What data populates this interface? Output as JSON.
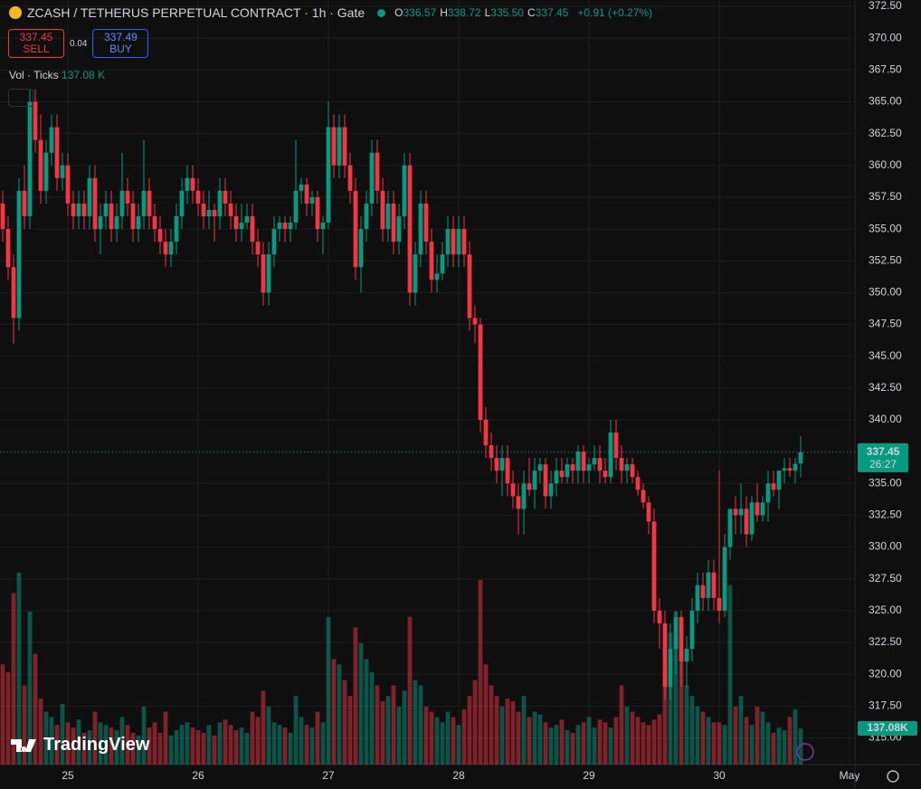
{
  "header": {
    "symbol": "ZCASH / TETHERUS PERPETUAL CONTRACT · 1h · Gate",
    "ohlc": [
      {
        "label": "O",
        "value": "336.57"
      },
      {
        "label": "H",
        "value": "338.72"
      },
      {
        "label": "L",
        "value": "335.50"
      },
      {
        "label": "C",
        "value": "337.45"
      }
    ],
    "change": "+0.91 (+0.27%)"
  },
  "trade": {
    "sell_price": "337.45",
    "sell_label": "SELL",
    "spread": "0.04",
    "buy_price": "337.49",
    "buy_label": "BUY"
  },
  "volume_legend": {
    "label": "Vol · Ticks",
    "value": "137.08 K"
  },
  "logo": "TradingView",
  "chart_data": {
    "type": "candlestick",
    "colors": {
      "up": "#089981",
      "down": "#f23645"
    },
    "candles": [
      [
        357,
        358,
        354,
        355
      ],
      [
        355,
        356,
        351,
        352
      ],
      [
        352,
        353,
        346,
        348
      ],
      [
        348,
        359,
        347,
        358
      ],
      [
        358,
        360,
        355,
        356
      ],
      [
        356,
        366,
        355,
        365
      ],
      [
        365,
        366,
        361,
        362
      ],
      [
        362,
        364,
        357,
        358
      ],
      [
        358,
        362,
        357,
        361
      ],
      [
        361,
        364,
        360,
        363
      ],
      [
        363,
        364,
        358,
        359
      ],
      [
        359,
        361,
        358,
        360
      ],
      [
        360,
        361,
        356,
        357
      ],
      [
        357,
        358,
        355,
        356
      ],
      [
        356,
        358,
        355,
        357
      ],
      [
        357,
        358,
        355,
        356
      ],
      [
        356,
        360,
        355,
        359
      ],
      [
        359,
        360,
        354,
        355
      ],
      [
        355,
        357,
        353,
        356
      ],
      [
        356,
        358,
        355,
        357
      ],
      [
        357,
        358,
        354,
        355
      ],
      [
        355,
        357,
        354,
        356
      ],
      [
        356,
        361,
        355,
        358
      ],
      [
        358,
        359,
        356,
        357
      ],
      [
        357,
        358,
        354,
        355
      ],
      [
        355,
        357,
        354,
        356
      ],
      [
        356,
        362,
        355,
        358
      ],
      [
        358,
        359,
        355,
        356
      ],
      [
        356,
        357,
        354,
        355
      ],
      [
        355,
        356,
        353,
        354
      ],
      [
        354,
        355,
        352,
        353
      ],
      [
        353,
        355,
        352,
        354
      ],
      [
        354,
        357,
        353,
        356
      ],
      [
        356,
        359,
        355,
        358
      ],
      [
        358,
        360,
        357,
        359
      ],
      [
        359,
        360,
        357,
        358
      ],
      [
        358,
        359,
        356,
        357
      ],
      [
        357,
        358,
        355,
        356
      ],
      [
        356,
        358,
        355,
        356.5
      ],
      [
        356.5,
        357,
        354,
        356
      ],
      [
        356,
        359,
        355,
        358
      ],
      [
        358,
        359,
        356,
        357
      ],
      [
        357,
        358,
        355,
        356
      ],
      [
        356,
        357,
        354,
        355
      ],
      [
        355,
        357,
        354,
        355.5
      ],
      [
        355.5,
        357,
        355,
        356
      ],
      [
        356,
        357,
        353,
        354
      ],
      [
        354,
        355,
        352,
        353
      ],
      [
        353,
        354,
        349,
        350
      ],
      [
        350,
        354,
        349,
        353
      ],
      [
        353,
        356,
        352,
        355
      ],
      [
        355,
        356,
        354,
        355.5
      ],
      [
        355.5,
        356,
        354,
        355
      ],
      [
        355,
        356,
        354,
        355.5
      ],
      [
        355.5,
        362,
        355,
        358
      ],
      [
        358,
        359,
        357,
        358.5
      ],
      [
        358.5,
        359,
        356,
        357
      ],
      [
        357,
        358,
        356,
        357.5
      ],
      [
        357.5,
        358,
        354,
        355
      ],
      [
        355,
        356,
        353,
        355.5
      ],
      [
        355.5,
        365,
        355,
        363
      ],
      [
        363,
        364,
        359,
        360
      ],
      [
        360,
        364,
        359,
        363
      ],
      [
        363,
        364,
        359,
        360
      ],
      [
        360,
        361,
        357,
        358
      ],
      [
        358,
        359,
        351,
        352
      ],
      [
        352,
        356,
        350,
        355
      ],
      [
        355,
        358,
        354,
        357
      ],
      [
        357,
        362,
        356,
        361
      ],
      [
        361,
        362,
        357,
        358
      ],
      [
        358,
        359,
        354,
        355
      ],
      [
        355,
        358,
        354,
        357
      ],
      [
        357,
        358,
        353,
        354
      ],
      [
        354,
        357,
        353,
        356
      ],
      [
        356,
        361,
        355,
        360
      ],
      [
        360,
        361,
        349,
        350
      ],
      [
        350,
        354,
        349,
        353
      ],
      [
        353,
        358,
        352,
        357
      ],
      [
        357,
        358,
        353,
        354
      ],
      [
        354,
        355,
        350,
        351
      ],
      [
        351,
        353,
        350,
        351.5
      ],
      [
        351.5,
        354,
        351,
        353
      ],
      [
        353,
        356,
        352,
        355
      ],
      [
        355,
        356,
        352,
        353
      ],
      [
        353,
        356,
        352,
        355
      ],
      [
        355,
        356,
        352,
        353
      ],
      [
        353,
        354,
        347,
        348
      ],
      [
        348,
        349,
        346,
        347.5
      ],
      [
        347.5,
        348,
        339,
        340
      ],
      [
        340,
        341,
        337,
        338
      ],
      [
        338,
        339,
        336,
        337
      ],
      [
        337,
        338,
        335,
        336
      ],
      [
        336,
        338,
        334,
        337
      ],
      [
        337,
        338,
        334,
        335
      ],
      [
        335,
        336,
        333,
        334
      ],
      [
        334,
        335,
        331,
        333
      ],
      [
        333,
        336,
        331,
        335
      ],
      [
        335,
        337,
        334,
        334.5
      ],
      [
        334.5,
        337,
        333,
        336
      ],
      [
        336,
        337,
        335,
        336.5
      ],
      [
        336.5,
        337,
        333,
        334
      ],
      [
        334,
        336,
        333,
        335
      ],
      [
        335,
        337,
        334,
        336
      ],
      [
        336,
        337,
        335,
        335.5
      ],
      [
        335.5,
        337,
        335,
        336.5
      ],
      [
        336.5,
        337,
        335,
        336
      ],
      [
        336,
        338,
        335,
        337.5
      ],
      [
        337.5,
        338,
        335,
        336
      ],
      [
        336,
        337,
        335,
        336.5
      ],
      [
        336.5,
        338,
        336,
        337
      ],
      [
        337,
        338,
        335,
        336
      ],
      [
        336,
        337,
        335,
        335.5
      ],
      [
        335.5,
        340,
        335,
        339
      ],
      [
        339,
        340,
        336,
        337
      ],
      [
        337,
        338,
        335,
        336
      ],
      [
        336,
        337,
        335,
        336.5
      ],
      [
        336.5,
        337,
        335,
        335.5
      ],
      [
        335.5,
        336,
        334,
        334.5
      ],
      [
        334.5,
        335,
        333,
        333.5
      ],
      [
        333.5,
        334,
        331,
        332
      ],
      [
        332,
        333,
        324,
        325
      ],
      [
        325,
        326,
        322,
        324
      ],
      [
        324,
        325,
        318,
        319
      ],
      [
        319,
        324,
        318,
        322
      ],
      [
        322,
        325,
        320,
        324.5
      ],
      [
        324.5,
        325,
        319,
        321
      ],
      [
        321,
        323,
        319,
        322
      ],
      [
        322,
        326,
        321,
        325
      ],
      [
        325,
        328,
        324,
        327
      ],
      [
        327,
        328,
        325,
        326
      ],
      [
        326,
        329,
        325,
        328
      ],
      [
        328,
        329,
        325,
        326
      ],
      [
        326,
        336,
        324,
        325
      ],
      [
        325,
        331,
        324.5,
        330
      ],
      [
        330,
        333,
        329,
        333
      ],
      [
        333,
        334,
        331,
        332.5
      ],
      [
        332.5,
        335,
        331,
        333
      ],
      [
        333,
        334,
        330,
        331
      ],
      [
        331,
        334,
        330.5,
        333.5
      ],
      [
        333.5,
        335,
        332,
        332.5
      ],
      [
        332.5,
        334,
        332,
        333.5
      ],
      [
        333.5,
        336,
        332,
        335
      ],
      [
        335,
        336,
        334,
        334.5
      ],
      [
        334.5,
        336,
        333,
        336
      ],
      [
        336,
        337,
        335,
        336.2
      ],
      [
        336.2,
        337,
        335.5,
        336
      ],
      [
        336,
        337,
        335,
        336.54
      ],
      [
        336.57,
        338.72,
        335.5,
        337.45
      ]
    ],
    "volumes": [
      380,
      350,
      650,
      727,
      300,
      580,
      420,
      250,
      200,
      180,
      150,
      230,
      160,
      140,
      170,
      120,
      130,
      200,
      160,
      150,
      140,
      130,
      180,
      150,
      120,
      110,
      220,
      140,
      160,
      120,
      200,
      110,
      130,
      150,
      160,
      140,
      130,
      120,
      150,
      110,
      160,
      170,
      150,
      130,
      140,
      120,
      200,
      180,
      280,
      220,
      160,
      150,
      140,
      120,
      260,
      180,
      150,
      140,
      200,
      160,
      560,
      400,
      380,
      320,
      260,
      520,
      460,
      400,
      350,
      300,
      240,
      260,
      300,
      220,
      280,
      560,
      320,
      300,
      220,
      200,
      180,
      160,
      200,
      180,
      150,
      210,
      260,
      320,
      700,
      380,
      300,
      260,
      220,
      250,
      240,
      200,
      260,
      180,
      200,
      190,
      160,
      140,
      150,
      170,
      130,
      120,
      150,
      160,
      180,
      140,
      170,
      160,
      140,
      180,
      300,
      220,
      200,
      180,
      160,
      150,
      170,
      190,
      350,
      500,
      580,
      450,
      300,
      260,
      220,
      200,
      180,
      160,
      160,
      150,
      680,
      220,
      260,
      180,
      150,
      220,
      200,
      160,
      120,
      140,
      130,
      180,
      210,
      137.08
    ],
    "ylim": [
      312.9,
      373
    ],
    "yticks": [
      {
        "value": 315,
        "label": "315.00"
      },
      {
        "value": 317.5,
        "label": "317.50"
      },
      {
        "value": 320,
        "label": "320.00"
      },
      {
        "value": 322.5,
        "label": "322.50"
      },
      {
        "value": 325,
        "label": "325.00"
      },
      {
        "value": 327.5,
        "label": "327.50"
      },
      {
        "value": 330,
        "label": "330.00"
      },
      {
        "value": 332.5,
        "label": "332.50"
      },
      {
        "value": 335,
        "label": "335.00"
      },
      {
        "value": 337.5,
        "label": "337.50"
      },
      {
        "value": 340,
        "label": "340.00"
      },
      {
        "value": 342.5,
        "label": "342.50"
      },
      {
        "value": 345,
        "label": "345.00"
      },
      {
        "value": 347.5,
        "label": "347.50"
      },
      {
        "value": 350,
        "label": "350.00"
      },
      {
        "value": 352.5,
        "label": "352.50"
      },
      {
        "value": 355,
        "label": "355.00"
      },
      {
        "value": 357.5,
        "label": "357.50"
      },
      {
        "value": 360,
        "label": "360.00"
      },
      {
        "value": 362.5,
        "label": "362.50"
      },
      {
        "value": 365,
        "label": "365.00"
      },
      {
        "value": 367.5,
        "label": "367.50"
      },
      {
        "value": 370,
        "label": "370.00"
      },
      {
        "value": 372.5,
        "label": "372.50"
      }
    ],
    "xlim": [
      -0.5,
      157
    ],
    "xticks": [
      {
        "value": 12,
        "label": "25"
      },
      {
        "value": 36,
        "label": "26"
      },
      {
        "value": 60,
        "label": "27"
      },
      {
        "value": 84,
        "label": "28"
      },
      {
        "value": 108,
        "label": "29"
      },
      {
        "value": 132,
        "label": "30"
      },
      {
        "value": 156,
        "label": "May"
      }
    ],
    "grid": true,
    "last_price": {
      "value": 337.45,
      "countdown": "26:27"
    },
    "last_volume": {
      "value": 137.08,
      "label": "137.08K"
    }
  }
}
